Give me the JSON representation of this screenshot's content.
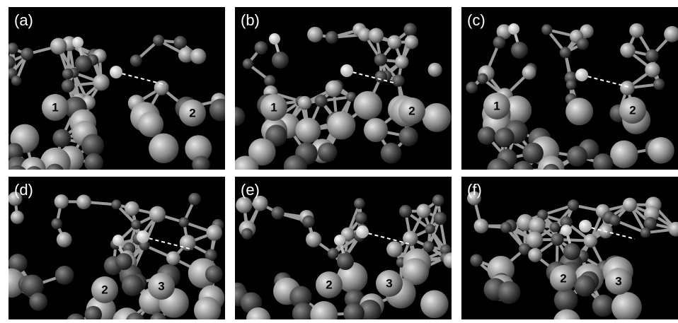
{
  "panels": [
    {
      "label": "(a)",
      "atoms": [
        "1",
        "2"
      ]
    },
    {
      "label": "(b)",
      "atoms": [
        "1",
        "2"
      ]
    },
    {
      "label": "(c)",
      "atoms": [
        "1",
        "2"
      ]
    },
    {
      "label": "(d)",
      "atoms": [
        "2",
        "3"
      ]
    },
    {
      "label": "(e)",
      "atoms": [
        "2",
        "3"
      ]
    },
    {
      "label": "(f)",
      "atoms": [
        "2",
        "3"
      ]
    }
  ]
}
